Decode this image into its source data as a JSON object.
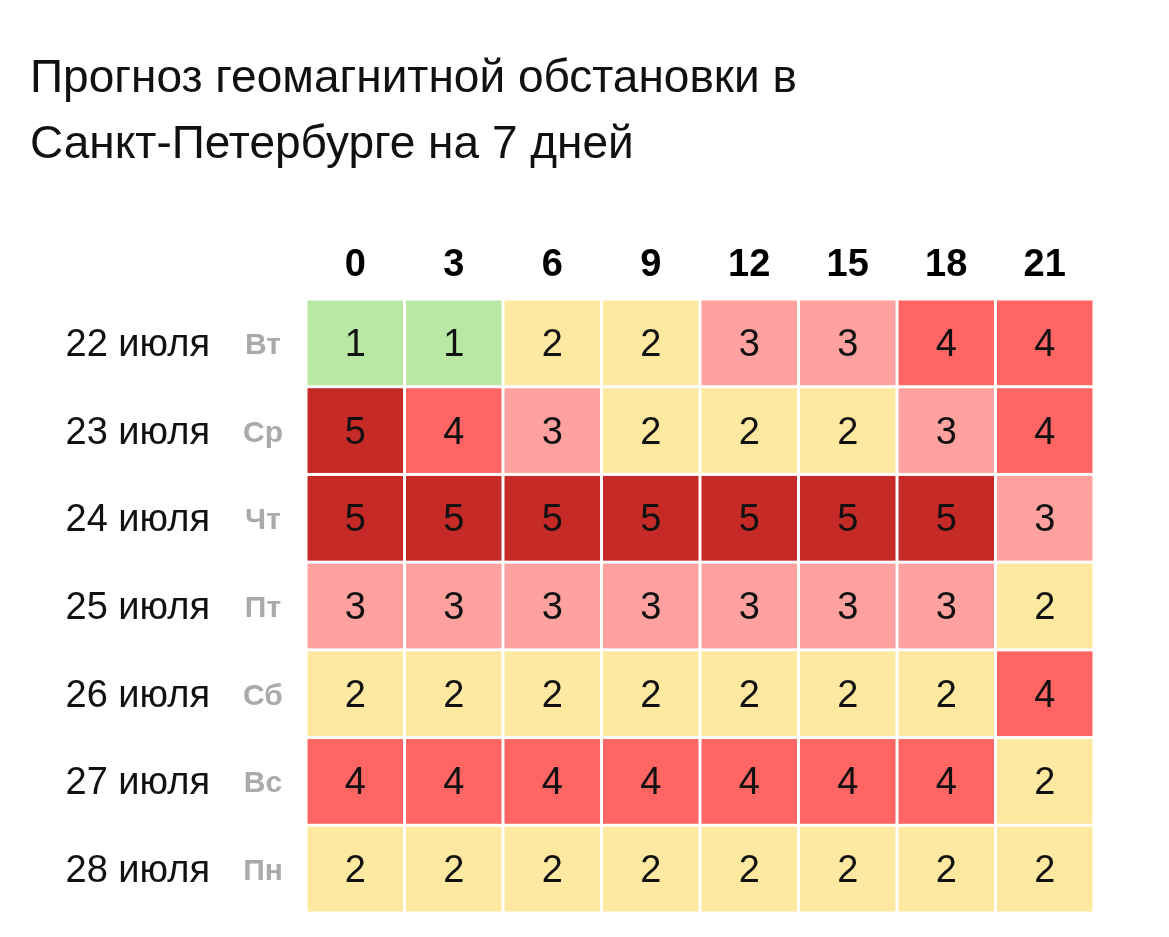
{
  "chart_data": {
    "type": "heatmap",
    "title": "Прогноз геомагнитной обстановки в Санкт-Петербурге на 7 дней",
    "categories": [
      "0",
      "3",
      "6",
      "9",
      "12",
      "15",
      "18",
      "21"
    ],
    "y_categories": [
      "22 июля",
      "23 июля",
      "24 июля",
      "25 июля",
      "26 июля",
      "27 июля",
      "28 июля"
    ],
    "y2_categories": [
      "Вт",
      "Ср",
      "Чт",
      "Пт",
      "Сб",
      "Вс",
      "Пн"
    ],
    "cells": [
      [
        1,
        1,
        2,
        2,
        3,
        3,
        4,
        4
      ],
      [
        5,
        4,
        3,
        2,
        2,
        2,
        3,
        4
      ],
      [
        5,
        5,
        5,
        5,
        5,
        5,
        5,
        3
      ],
      [
        3,
        3,
        3,
        3,
        3,
        3,
        3,
        2
      ],
      [
        2,
        2,
        2,
        2,
        2,
        2,
        2,
        4
      ],
      [
        4,
        4,
        4,
        4,
        4,
        4,
        4,
        2
      ],
      [
        2,
        2,
        2,
        2,
        2,
        2,
        2,
        2
      ]
    ],
    "colors": [
      "#b8e8a4",
      "#ffe9a1",
      "#ffa19f",
      "#ff6663",
      "#c62a27"
    ],
    "data_labels": true
  }
}
